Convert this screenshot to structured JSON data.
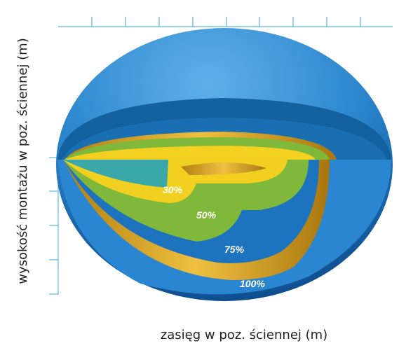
{
  "axes": {
    "y_label": "wysokość montażu w poz. ściennej (m)",
    "x_label": "zasięg w poz. ściennej (m)"
  },
  "zones": [
    {
      "label": "30%"
    },
    {
      "label": "50%"
    },
    {
      "label": "75%"
    },
    {
      "label": "100%"
    }
  ]
}
